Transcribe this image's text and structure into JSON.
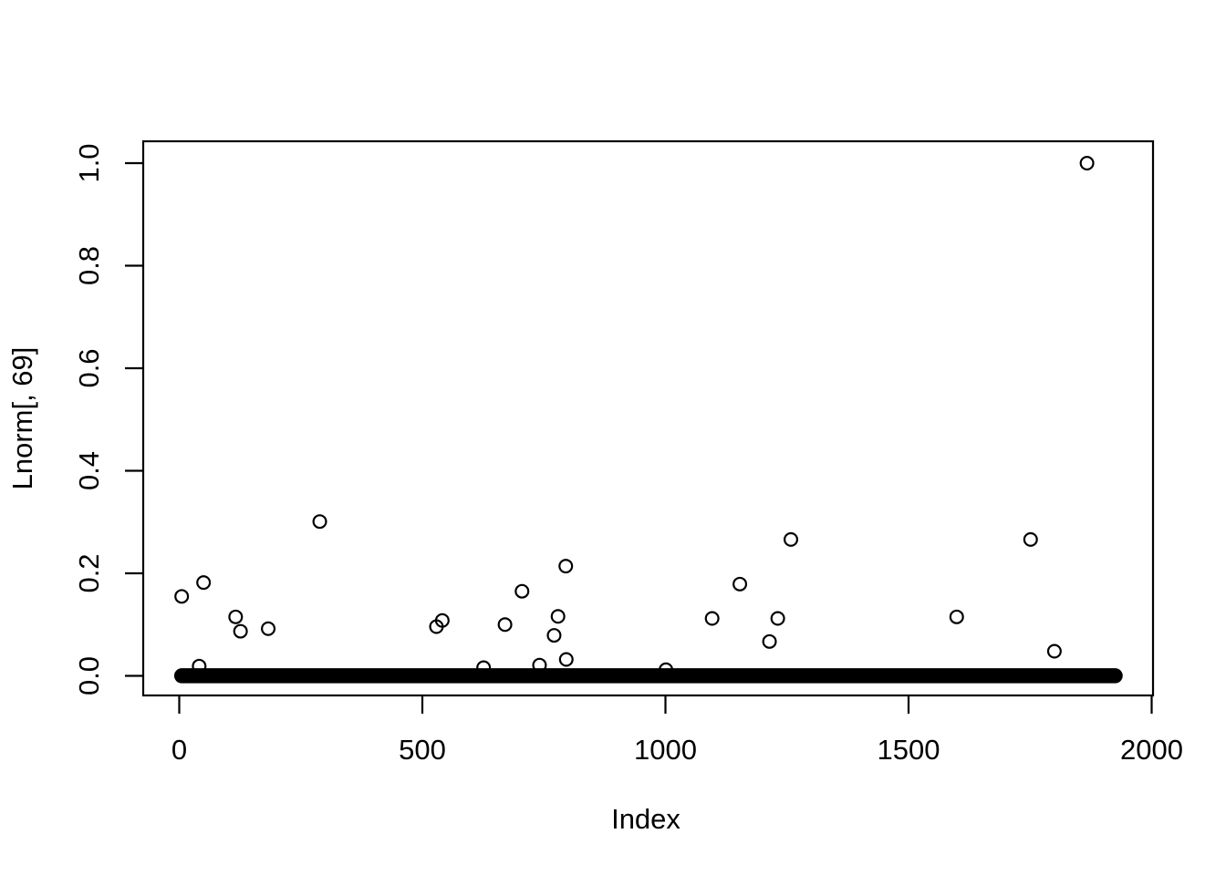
{
  "chart_data": {
    "type": "scatter",
    "title": "",
    "xlabel": "Index",
    "ylabel": "Lnorm[, 69]",
    "xlim": [
      0,
      2000
    ],
    "ylim": [
      0.0,
      1.0
    ],
    "x_tick_values": [
      0,
      500,
      1000,
      1500,
      2000
    ],
    "x_tick_labels": [
      "0",
      "500",
      "1000",
      "1500",
      "2000"
    ],
    "y_tick_values": [
      0.0,
      0.2,
      0.4,
      0.6,
      0.8,
      1.0
    ],
    "y_tick_labels": [
      "0.0",
      "0.2",
      "0.4",
      "0.6",
      "0.8",
      "1.0"
    ],
    "grid": "off",
    "legend": "none",
    "marker": "open-circle",
    "foreground_color": "#000000",
    "background_color": "#ffffff",
    "points": [
      {
        "x": 5,
        "y": 0.155
      },
      {
        "x": 41,
        "y": 0.019
      },
      {
        "x": 50,
        "y": 0.182
      },
      {
        "x": 116,
        "y": 0.115
      },
      {
        "x": 126,
        "y": 0.087
      },
      {
        "x": 183,
        "y": 0.092
      },
      {
        "x": 289,
        "y": 0.301
      },
      {
        "x": 529,
        "y": 0.096
      },
      {
        "x": 541,
        "y": 0.108
      },
      {
        "x": 626,
        "y": 0.016
      },
      {
        "x": 670,
        "y": 0.1
      },
      {
        "x": 705,
        "y": 0.165
      },
      {
        "x": 741,
        "y": 0.021
      },
      {
        "x": 771,
        "y": 0.079
      },
      {
        "x": 779,
        "y": 0.116
      },
      {
        "x": 795,
        "y": 0.214
      },
      {
        "x": 796,
        "y": 0.032
      },
      {
        "x": 1001,
        "y": 0.012
      },
      {
        "x": 1096,
        "y": 0.112
      },
      {
        "x": 1153,
        "y": 0.179
      },
      {
        "x": 1214,
        "y": 0.067
      },
      {
        "x": 1231,
        "y": 0.112
      },
      {
        "x": 1258,
        "y": 0.266
      },
      {
        "x": 1599,
        "y": 0.115
      },
      {
        "x": 1751,
        "y": 0.266
      },
      {
        "x": 1800,
        "y": 0.048
      },
      {
        "x": 1867,
        "y": 1.0
      }
    ],
    "zero_band": {
      "description": "dense row of ~1900 overlapping points with values near 0",
      "x_start": 5,
      "x_end": 1925,
      "y": 0.0
    }
  }
}
